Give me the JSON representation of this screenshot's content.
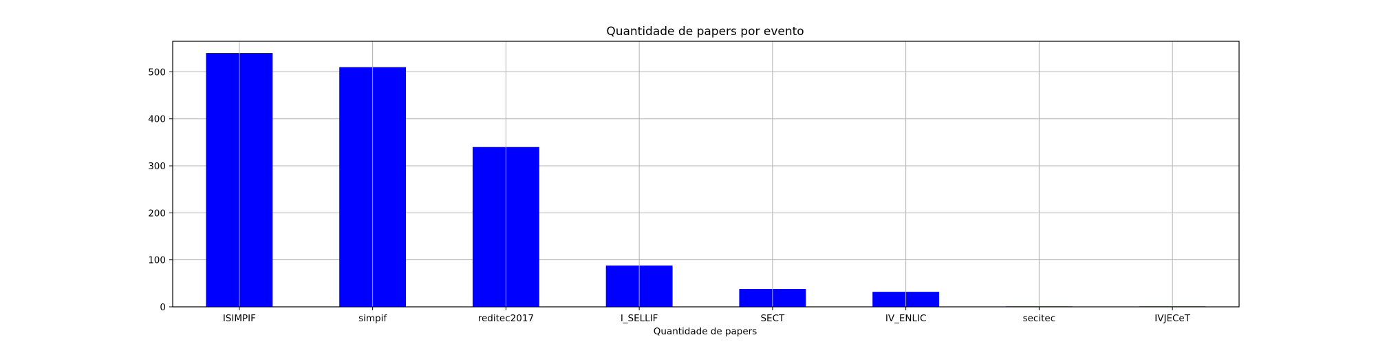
{
  "chart_data": {
    "type": "bar",
    "title": "Quantidade de papers por evento",
    "xlabel": "Quantidade de papers",
    "ylabel": "",
    "categories": [
      "ISIMPIF",
      "simpif",
      "reditec2017",
      "I_SELLIF",
      "SECT",
      "IV_ENLIC",
      "secitec",
      "IVJECeT"
    ],
    "values": [
      540,
      510,
      340,
      88,
      38,
      32,
      1,
      1
    ],
    "ylim": [
      0,
      565
    ],
    "yticks": [
      0,
      100,
      200,
      300,
      400,
      500
    ],
    "grid": true,
    "bar_color": "#0000ff"
  }
}
